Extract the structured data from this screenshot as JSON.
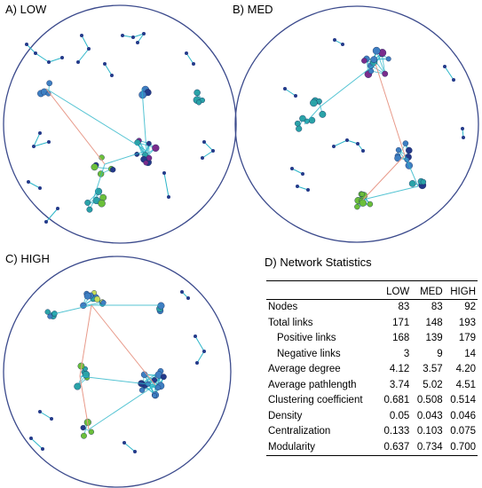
{
  "panels": {
    "a": {
      "label": "A) LOW"
    },
    "b": {
      "label": "B) MED"
    },
    "c": {
      "label": "C) HIGH"
    },
    "d": {
      "label": "D) Network Statistics"
    }
  },
  "colors": {
    "circle": "#3b4a8c",
    "edge_positive": "#2bb5c8",
    "edge_negative": "#e89a8a",
    "node_dark": "#243a8a",
    "node_blue": "#3e7fc2",
    "node_teal": "#2aa3a8",
    "node_green": "#6bbf3a",
    "node_purple": "#7a2c8c",
    "node_yellowgreen": "#c4dc5a"
  },
  "table": {
    "columns": [
      "",
      "LOW",
      "MED",
      "HIGH"
    ],
    "rows": [
      {
        "metric": "Nodes",
        "indent": false,
        "low": "83",
        "med": "83",
        "high": "92"
      },
      {
        "metric": "Total links",
        "indent": false,
        "low": "171",
        "med": "148",
        "high": "193"
      },
      {
        "metric": "Positive links",
        "indent": true,
        "low": "168",
        "med": "139",
        "high": "179"
      },
      {
        "metric": "Negative links",
        "indent": true,
        "low": "3",
        "med": "9",
        "high": "14"
      },
      {
        "metric": "Average degree",
        "indent": false,
        "low": "4.12",
        "med": "3.57",
        "high": "4.20"
      },
      {
        "metric": "Average pathlength",
        "indent": false,
        "low": "3.74",
        "med": "5.02",
        "high": "4.51"
      },
      {
        "metric": "Clustering coefficient",
        "indent": false,
        "low": "0.681",
        "med": "0.508",
        "high": "0.514"
      },
      {
        "metric": "Density",
        "indent": false,
        "low": "0.05",
        "med": "0.043",
        "high": "0.046"
      },
      {
        "metric": "Centralization",
        "indent": false,
        "low": "0.133",
        "med": "0.103",
        "high": "0.075"
      },
      {
        "metric": "Modularity",
        "indent": false,
        "low": "0.637",
        "med": "0.734",
        "high": "0.700"
      }
    ]
  }
}
